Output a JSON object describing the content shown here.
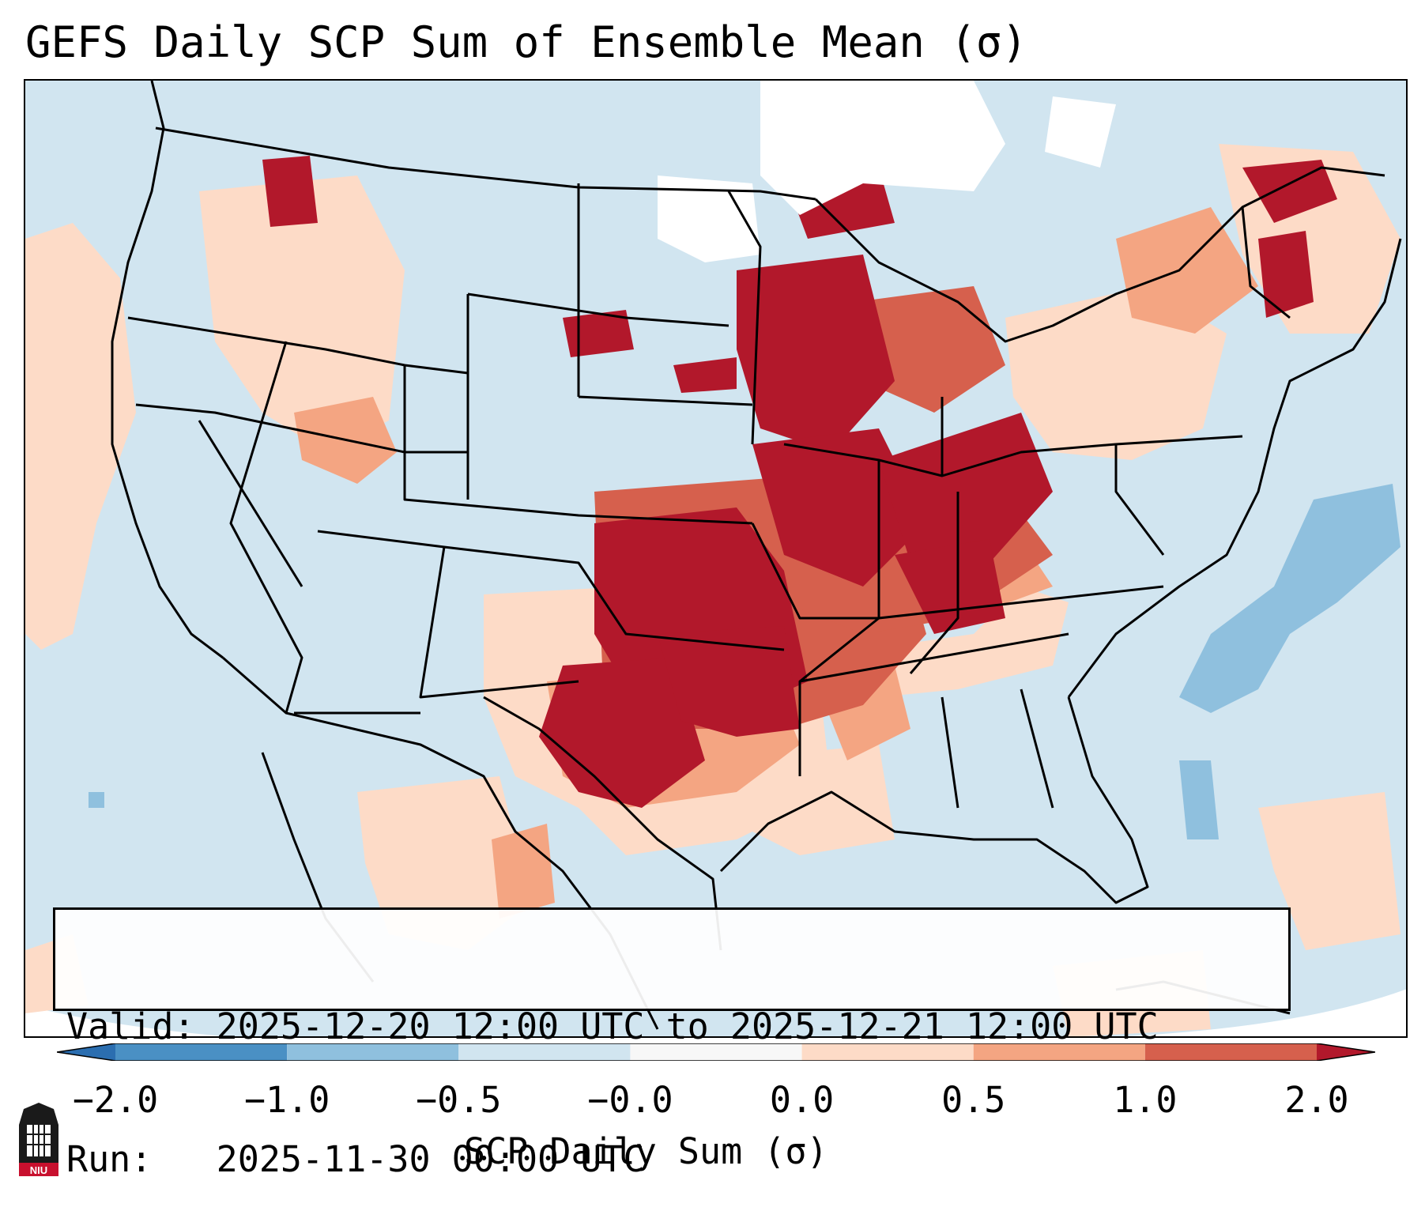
{
  "title": "GEFS Daily SCP Sum of Ensemble Mean (σ)",
  "info": {
    "valid_line": "Valid: 2025-12-20 12:00 UTC to 2025-12-21 12:00 UTC",
    "run_line": "Run:   2025-11-30 00:00 UTC"
  },
  "colorbar": {
    "label": "SCP Daily Sum (σ)",
    "ticks": [
      "−2.0",
      "−1.0",
      "−0.5",
      "−0.0",
      "0.0",
      "0.5",
      "1.0",
      "2.0"
    ],
    "bins": [
      {
        "range": "< -2.0",
        "color": "#2b6eb0"
      },
      {
        "range": "-2.0 to -1.0",
        "color": "#4a90c4"
      },
      {
        "range": "-1.0 to -0.5",
        "color": "#8fc0de"
      },
      {
        "range": "-0.5 to -0.0",
        "color": "#d1e5f0"
      },
      {
        "range": "-0.0 to 0.0",
        "color": "#f7f7f7"
      },
      {
        "range": "0.0 to 0.5",
        "color": "#fddbc7"
      },
      {
        "range": "0.5 to 1.0",
        "color": "#f4a582"
      },
      {
        "range": "1.0 to 2.0",
        "color": "#d6604d"
      },
      {
        "range": "> 2.0",
        "color": "#b2182b"
      }
    ]
  },
  "map": {
    "region": "Contiguous United States, southern Canada, northern Mexico",
    "background_value_color": "#d1e5f0",
    "highlight_areas": [
      {
        "area": "Southern Plains (Oklahoma, Kansas, north Texas)",
        "category": "> 2.0"
      },
      {
        "area": "Missouri / Iowa / Illinois / Indiana / Ohio Valley",
        "category": "> 2.0"
      },
      {
        "area": "Wisconsin / Upper Great Lakes",
        "category": "> 2.0"
      },
      {
        "area": "Texas Gulf coast region and Lower Mississippi Valley",
        "category": "0.0 to 0.5"
      },
      {
        "area": "Western Atlantic off mid-Atlantic coast",
        "category": "-1.0 to -0.5"
      },
      {
        "area": "Pacific Northwest / Idaho / Montana",
        "category": "0.0 to 1.0"
      }
    ]
  },
  "logo": {
    "text": "NIU"
  }
}
